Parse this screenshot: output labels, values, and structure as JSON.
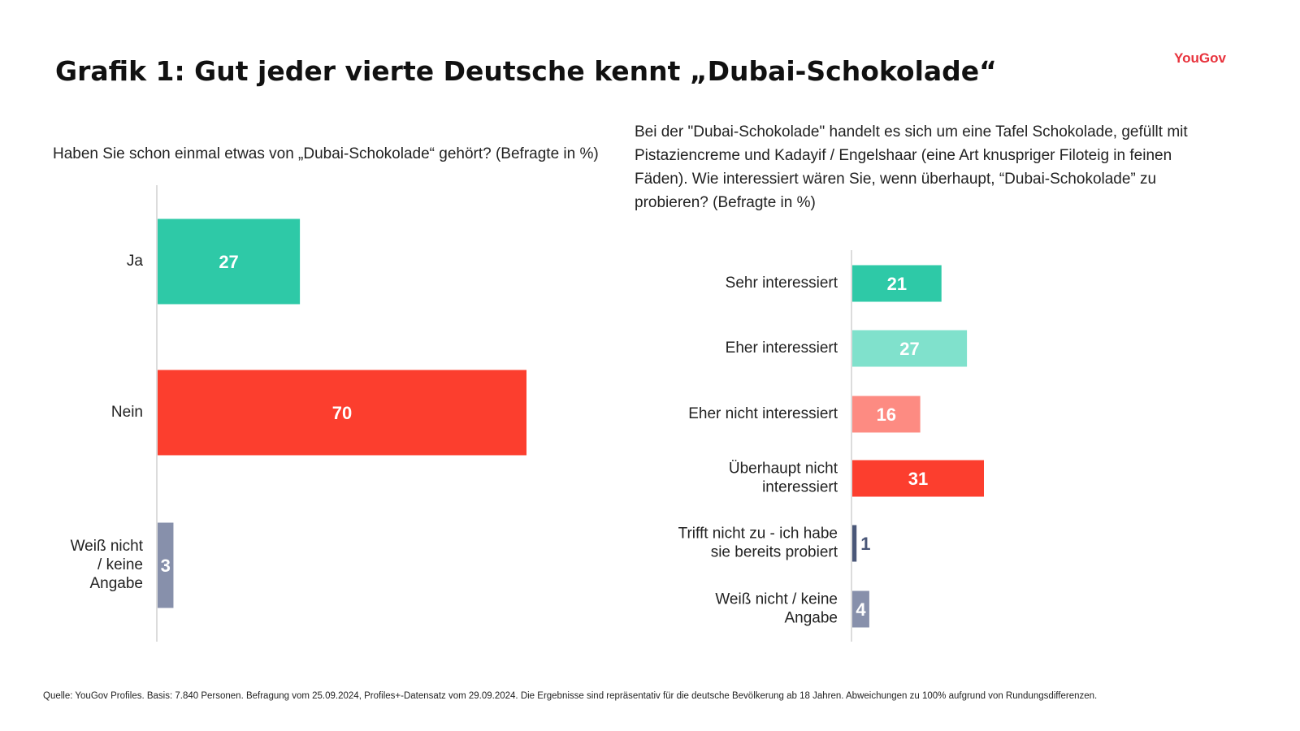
{
  "title": "Grafik 1: Gut jeder vierte Deutsche kennt „Dubai-Schokolade“",
  "brand": "YouGov",
  "source": "Quelle: YouGov Profiles. Basis: 7.840 Personen. Befragung vom 25.09.2024, Profiles+-Datensatz vom 29.09.2024. Die Ergebnisse sind repräsentativ für die deutsche Bevölkerung ab 18 Jahren. Abweichungen zu 100% aufgrund von Rundungsdifferenzen.",
  "chart_data": [
    {
      "type": "bar",
      "orientation": "horizontal",
      "question": "Haben Sie schon einmal etwas von „Dubai-Schokolade“ gehört? (Befragte in %)",
      "categories": [
        "Ja",
        "Nein",
        "Weiß nicht / keine Angabe"
      ],
      "category_lines": [
        [
          "Ja"
        ],
        [
          "Nein"
        ],
        [
          "Weiß nicht",
          "/ keine",
          "Angabe"
        ]
      ],
      "values": [
        27,
        70,
        3
      ],
      "colors": [
        "#2ec9a7",
        "#fc3e2e",
        "#8790ab"
      ],
      "label_colors": [
        "#ffffff",
        "#ffffff",
        "#ffffff"
      ],
      "xlim": [
        0,
        70
      ],
      "grid": false
    },
    {
      "type": "bar",
      "orientation": "horizontal",
      "question": "Bei der \"Dubai-Schokolade\" handelt es sich um eine Tafel Schokolade, gefüllt mit Pistaziencreme und Kadayif / Engelshaar (eine Art knuspriger Filoteig in feinen Fäden). Wie interessiert wären Sie, wenn überhaupt, “Dubai-Schokolade” zu probieren? (Befragte in %)",
      "categories": [
        "Sehr interessiert",
        "Eher interessiert",
        "Eher nicht interessiert",
        "Überhaupt nicht interessiert",
        "Trifft nicht zu - ich habe sie bereits probiert",
        "Weiß nicht / keine Angabe"
      ],
      "category_lines": [
        [
          "Sehr interessiert"
        ],
        [
          "Eher interessiert"
        ],
        [
          "Eher nicht interessiert"
        ],
        [
          "Überhaupt nicht",
          "interessiert"
        ],
        [
          "Trifft nicht zu - ich habe",
          "sie bereits probiert"
        ],
        [
          "Weiß nicht / keine",
          "Angabe"
        ]
      ],
      "values": [
        21,
        27,
        16,
        31,
        1,
        4
      ],
      "colors": [
        "#2ec9a7",
        "#80e1cc",
        "#fd8b82",
        "#fc3e2e",
        "#4a5778",
        "#8790ab"
      ],
      "label_colors": [
        "#ffffff",
        "#ffffff",
        "#ffffff",
        "#ffffff",
        "#4a5778",
        "#ffffff"
      ],
      "xlim": [
        0,
        31
      ],
      "grid": false
    }
  ]
}
